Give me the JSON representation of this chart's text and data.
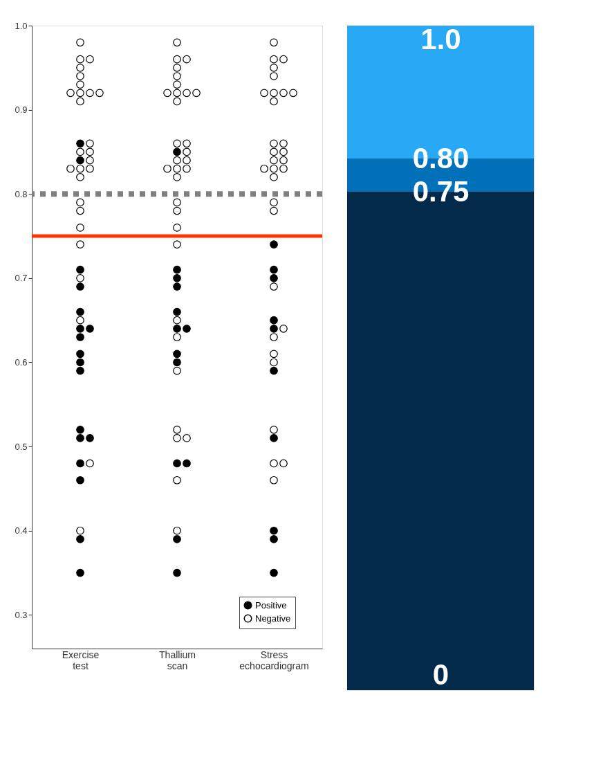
{
  "chart_data": [
    {
      "type": "scatter",
      "categories": [
        "Exercise test",
        "Thallium scan",
        "Stress echocardiogram"
      ],
      "marker": "circle",
      "grid": false,
      "legend": "bottom right",
      "ylim": [
        0.26,
        1.0
      ],
      "yticks": [
        {
          "value": 0.3,
          "label": "0.3"
        },
        {
          "value": 0.4,
          "label": "0.4"
        },
        {
          "value": 0.5,
          "label": "0.5"
        },
        {
          "value": 0.6,
          "label": "0.6"
        },
        {
          "value": 0.7,
          "label": "0.7"
        },
        {
          "value": 0.8,
          "label": "0.8"
        },
        {
          "value": 0.9,
          "label": "0.9"
        },
        {
          "value": 1.0,
          "label": "1.0"
        }
      ],
      "ref_lines": [
        {
          "axis": "y",
          "value": 0.8,
          "color": "#808080",
          "line_style": "dotted"
        },
        {
          "axis": "y",
          "value": 0.75,
          "color": "#ff3300",
          "line_style": "solid"
        }
      ],
      "series": [
        {
          "name": "Positive",
          "color": "#000000",
          "x": [
            "Exercise test",
            "Exercise test",
            "Exercise test",
            "Exercise test",
            "Exercise test",
            "Exercise test",
            "Exercise test",
            "Exercise test",
            "Exercise test",
            "Exercise test",
            "Exercise test",
            "Exercise test",
            "Exercise test",
            "Exercise test",
            "Exercise test",
            "Exercise test",
            "Exercise test",
            "Exercise test",
            "Thallium scan",
            "Thallium scan",
            "Thallium scan",
            "Thallium scan",
            "Thallium scan",
            "Thallium scan",
            "Thallium scan",
            "Thallium scan",
            "Thallium scan",
            "Thallium scan",
            "Thallium scan",
            "Thallium scan",
            "Thallium scan",
            "Stress echocardiogram",
            "Stress echocardiogram",
            "Stress echocardiogram",
            "Stress echocardiogram",
            "Stress echocardiogram",
            "Stress echocardiogram",
            "Stress echocardiogram",
            "Stress echocardiogram",
            "Stress echocardiogram",
            "Stress echocardiogram"
          ],
          "values": [
            0.86,
            0.84,
            0.71,
            0.69,
            0.66,
            0.64,
            0.64,
            0.63,
            0.61,
            0.6,
            0.59,
            0.52,
            0.51,
            0.51,
            0.48,
            0.46,
            0.39,
            0.35,
            0.85,
            0.71,
            0.7,
            0.69,
            0.66,
            0.64,
            0.64,
            0.61,
            0.6,
            0.48,
            0.48,
            0.39,
            0.35,
            0.74,
            0.71,
            0.7,
            0.65,
            0.64,
            0.59,
            0.51,
            0.4,
            0.39,
            0.35
          ]
        },
        {
          "name": "Negative",
          "color": "#ffffff",
          "x": [
            "Exercise test",
            "Exercise test",
            "Exercise test",
            "Exercise test",
            "Exercise test",
            "Exercise test",
            "Exercise test",
            "Exercise test",
            "Exercise test",
            "Exercise test",
            "Exercise test",
            "Exercise test",
            "Exercise test",
            "Exercise test",
            "Exercise test",
            "Exercise test",
            "Exercise test",
            "Exercise test",
            "Exercise test",
            "Exercise test",
            "Exercise test",
            "Exercise test",
            "Exercise test",
            "Exercise test",
            "Exercise test",
            "Exercise test",
            "Exercise test",
            "Thallium scan",
            "Thallium scan",
            "Thallium scan",
            "Thallium scan",
            "Thallium scan",
            "Thallium scan",
            "Thallium scan",
            "Thallium scan",
            "Thallium scan",
            "Thallium scan",
            "Thallium scan",
            "Thallium scan",
            "Thallium scan",
            "Thallium scan",
            "Thallium scan",
            "Thallium scan",
            "Thallium scan",
            "Thallium scan",
            "Thallium scan",
            "Thallium scan",
            "Thallium scan",
            "Thallium scan",
            "Thallium scan",
            "Thallium scan",
            "Thallium scan",
            "Thallium scan",
            "Thallium scan",
            "Thallium scan",
            "Thallium scan",
            "Thallium scan",
            "Thallium scan",
            "Thallium scan",
            "Stress echocardiogram",
            "Stress echocardiogram",
            "Stress echocardiogram",
            "Stress echocardiogram",
            "Stress echocardiogram",
            "Stress echocardiogram",
            "Stress echocardiogram",
            "Stress echocardiogram",
            "Stress echocardiogram",
            "Stress echocardiogram",
            "Stress echocardiogram",
            "Stress echocardiogram",
            "Stress echocardiogram",
            "Stress echocardiogram",
            "Stress echocardiogram",
            "Stress echocardiogram",
            "Stress echocardiogram",
            "Stress echocardiogram",
            "Stress echocardiogram",
            "Stress echocardiogram",
            "Stress echocardiogram",
            "Stress echocardiogram",
            "Stress echocardiogram",
            "Stress echocardiogram",
            "Stress echocardiogram",
            "Stress echocardiogram",
            "Stress echocardiogram",
            "Stress echocardiogram",
            "Stress echocardiogram",
            "Stress echocardiogram",
            "Stress echocardiogram"
          ],
          "values": [
            0.98,
            0.96,
            0.96,
            0.95,
            0.94,
            0.93,
            0.92,
            0.92,
            0.92,
            0.92,
            0.91,
            0.86,
            0.85,
            0.85,
            0.84,
            0.83,
            0.83,
            0.83,
            0.82,
            0.79,
            0.78,
            0.76,
            0.74,
            0.7,
            0.65,
            0.48,
            0.4,
            0.98,
            0.96,
            0.96,
            0.95,
            0.94,
            0.93,
            0.92,
            0.92,
            0.92,
            0.92,
            0.91,
            0.86,
            0.86,
            0.85,
            0.84,
            0.84,
            0.83,
            0.83,
            0.83,
            0.82,
            0.79,
            0.78,
            0.76,
            0.74,
            0.65,
            0.63,
            0.59,
            0.52,
            0.51,
            0.51,
            0.46,
            0.4,
            0.98,
            0.96,
            0.96,
            0.95,
            0.94,
            0.92,
            0.92,
            0.92,
            0.92,
            0.91,
            0.86,
            0.86,
            0.85,
            0.85,
            0.84,
            0.84,
            0.83,
            0.83,
            0.83,
            0.82,
            0.79,
            0.78,
            0.69,
            0.64,
            0.63,
            0.61,
            0.6,
            0.52,
            0.48,
            0.48,
            0.46
          ]
        }
      ]
    },
    {
      "type": "bar",
      "stacked": true,
      "categories": [
        null
      ],
      "tick_labels": "y",
      "grid": false,
      "ylim": [
        0,
        1.0
      ],
      "yticks": [
        {
          "value": 0,
          "label": "0"
        },
        {
          "value": 0.75,
          "label": "0.75"
        },
        {
          "value": 0.8,
          "label": "0.80"
        },
        {
          "value": 1.0,
          "label": "1.0"
        }
      ],
      "series": [
        {
          "color": "#032a4a",
          "values": [
            0.75
          ]
        },
        {
          "color": "#0070b8",
          "values": [
            0.05
          ]
        },
        {
          "color": "#29a8f5",
          "values": [
            0.2
          ]
        }
      ]
    }
  ]
}
